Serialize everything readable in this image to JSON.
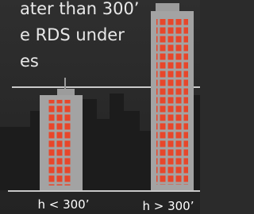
{
  "text": {
    "line1": "ater than 300’",
    "line2": "e RDS under",
    "line3": "es"
  },
  "labels": {
    "short": "h < 300’",
    "tall": "h > 300’"
  }
}
